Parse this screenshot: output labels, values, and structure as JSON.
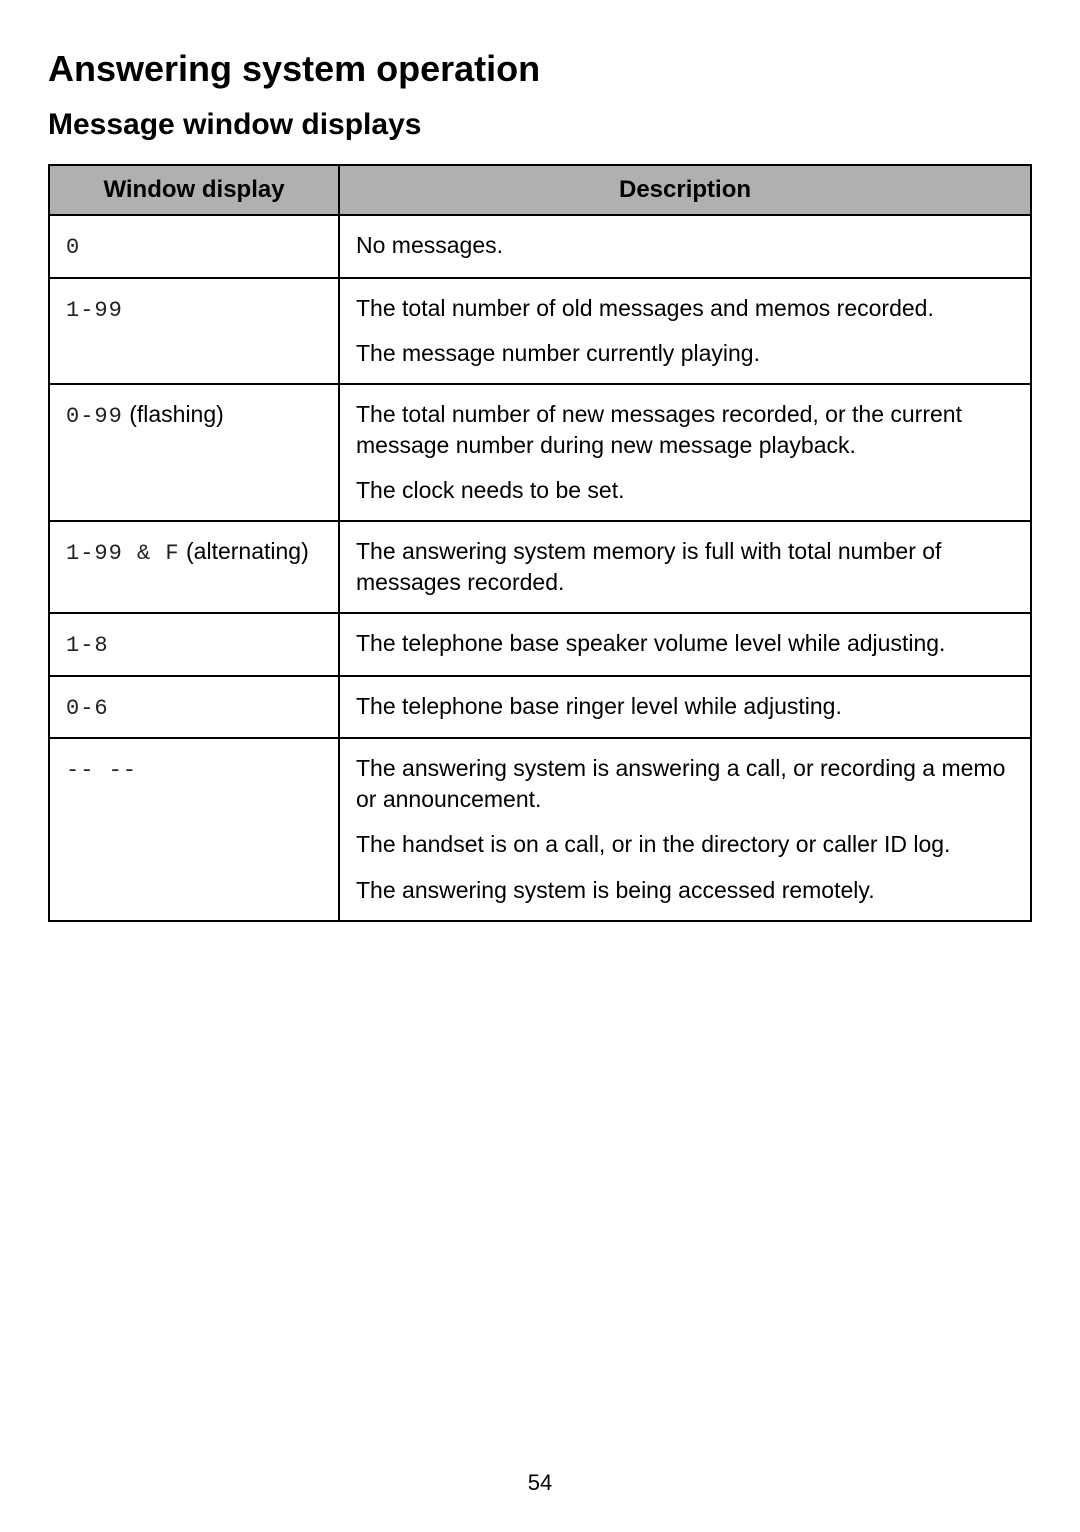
{
  "page": {
    "title": "Answering system operation",
    "subtitle": "Message window displays",
    "page_number": "54",
    "headers": {
      "col1": "Window display",
      "col2": "Description"
    },
    "rows": [
      {
        "display_code": "0",
        "display_suffix": "",
        "descriptions": [
          "No messages."
        ]
      },
      {
        "display_code": "1-99",
        "display_suffix": "",
        "descriptions": [
          "The total number of old messages and memos recorded.",
          "The message number currently playing."
        ]
      },
      {
        "display_code": "0-99",
        "display_suffix": " (flashing)",
        "descriptions": [
          "The total number of new messages recorded, or the current message number during new message playback.",
          "The clock needs to be set."
        ]
      },
      {
        "display_code": "1-99",
        "display_suffix_code": " & F",
        "display_suffix": " (alternating)",
        "descriptions": [
          "The answering system memory is full with total number of messages recorded."
        ]
      },
      {
        "display_code": "1-8",
        "display_suffix": "",
        "descriptions": [
          "The telephone base speaker volume level while adjusting."
        ]
      },
      {
        "display_code": "0-6",
        "display_suffix": "",
        "descriptions": [
          "The telephone base ringer level while adjusting."
        ]
      },
      {
        "display_code": "-- --",
        "display_suffix": "",
        "descriptions": [
          "The answering system is answering a call, or recording a memo or announcement.",
          "The handset is on a call, or in the directory or caller ID log.",
          "The answering system is being accessed remotely."
        ]
      }
    ]
  }
}
